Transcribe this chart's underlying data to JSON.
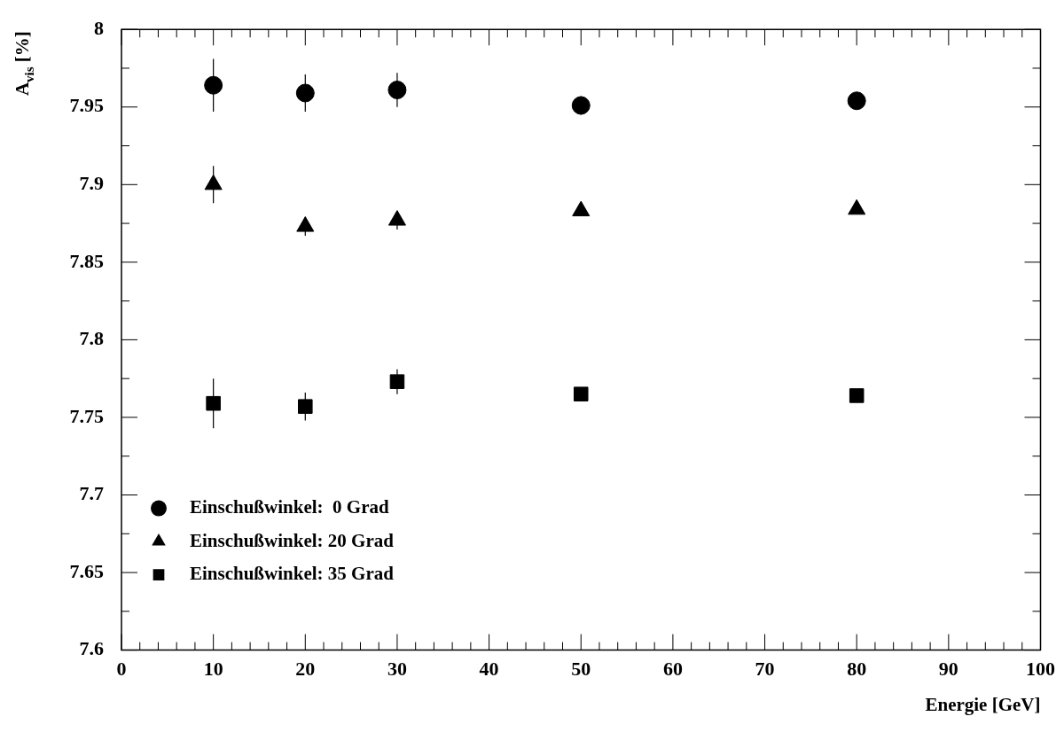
{
  "chart_data": {
    "type": "scatter",
    "xlabel": "Energie [GeV]",
    "ylabel": "A$_{vis}$ [%]",
    "x": [
      10,
      20,
      30,
      50,
      80
    ],
    "series": [
      {
        "name": "Einschußwinkel:  0 Grad",
        "color": "#000000",
        "marker": "circle",
        "values": [
          7.964,
          7.959,
          7.961,
          7.951,
          7.954
        ],
        "errors": [
          0.017,
          0.012,
          0.011,
          0.006,
          0.004
        ]
      },
      {
        "name": "Einschußwinkel: 20 Grad",
        "color": "#000000",
        "marker": "triangle",
        "values": [
          7.9,
          7.873,
          7.877,
          7.883,
          7.884
        ],
        "errors": [
          0.012,
          0.006,
          0.006,
          null,
          null
        ]
      },
      {
        "name": "Einschußwinkel: 35 Grad",
        "color": "#000000",
        "marker": "square",
        "values": [
          7.759,
          7.757,
          7.773,
          7.765,
          7.764
        ],
        "errors": [
          0.016,
          0.009,
          0.008,
          null,
          null
        ]
      }
    ],
    "xlim": [
      0,
      100
    ],
    "xticks": [
      0,
      {
        "value": 2,
        "label": null
      },
      {
        "value": 4,
        "label": null
      },
      {
        "value": 6,
        "label": null
      },
      {
        "value": 8,
        "label": null
      },
      10,
      {
        "value": 12,
        "label": null
      },
      {
        "value": 14,
        "label": null
      },
      {
        "value": 16,
        "label": null
      },
      {
        "value": 18,
        "label": null
      },
      20,
      {
        "value": 22,
        "label": null
      },
      {
        "value": 24,
        "label": null
      },
      {
        "value": 26,
        "label": null
      },
      {
        "value": 28,
        "label": null
      },
      30,
      {
        "value": 32,
        "label": null
      },
      {
        "value": 34,
        "label": null
      },
      {
        "value": 36,
        "label": null
      },
      {
        "value": 38,
        "label": null
      },
      40,
      {
        "value": 42,
        "label": null
      },
      {
        "value": 44,
        "label": null
      },
      {
        "value": 46,
        "label": null
      },
      {
        "value": 48,
        "label": null
      },
      50,
      {
        "value": 52,
        "label": null
      },
      {
        "value": 54,
        "label": null
      },
      {
        "value": 56,
        "label": null
      },
      {
        "value": 58,
        "label": null
      },
      60,
      {
        "value": 62,
        "label": null
      },
      {
        "value": 64,
        "label": null
      },
      {
        "value": 66,
        "label": null
      },
      {
        "value": 68,
        "label": null
      },
      70,
      {
        "value": 72,
        "label": null
      },
      {
        "value": 74,
        "label": null
      },
      {
        "value": 76,
        "label": null
      },
      {
        "value": 78,
        "label": null
      },
      80,
      {
        "value": 82,
        "label": null
      },
      {
        "value": 84,
        "label": null
      },
      {
        "value": 86,
        "label": null
      },
      {
        "value": 88,
        "label": null
      },
      90,
      {
        "value": 92,
        "label": null
      },
      {
        "value": 94,
        "label": null
      },
      {
        "value": 96,
        "label": null
      },
      {
        "value": 98,
        "label": null
      },
      100
    ],
    "ylim": [
      7.6,
      8
    ],
    "yticks": [
      7.6,
      {
        "value": 7.625,
        "label": null
      },
      7.65,
      {
        "value": 7.675,
        "label": null
      },
      7.7,
      {
        "value": 7.725,
        "label": null
      },
      7.75,
      {
        "value": 7.775,
        "label": null
      },
      7.8,
      {
        "value": 7.825,
        "label": null
      },
      7.85,
      {
        "value": 7.875,
        "label": null
      },
      7.9,
      {
        "value": 7.925,
        "label": null
      },
      7.95,
      {
        "value": 7.975,
        "label": null
      },
      8
    ],
    "grid": false,
    "legend": "bottom left",
    "line_style": "none"
  }
}
